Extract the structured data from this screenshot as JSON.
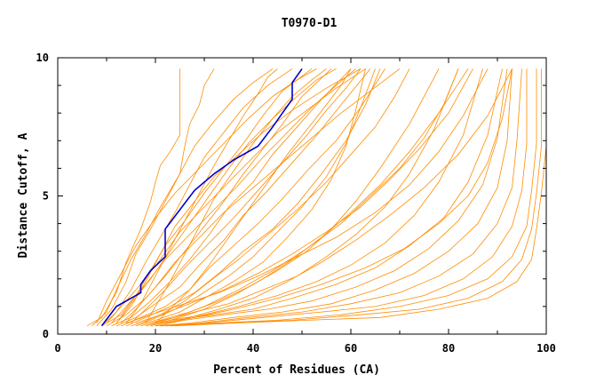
{
  "chart_data": {
    "type": "line",
    "title": "T0970-D1",
    "xlabel": "Percent of Residues (CA)",
    "ylabel": "Distance Cutoff, A",
    "xlim": [
      0,
      100
    ],
    "ylim": [
      0,
      10
    ],
    "x_ticks": [
      0,
      20,
      40,
      60,
      80,
      100
    ],
    "y_ticks": [
      0,
      5,
      10
    ],
    "grid": false,
    "colors": {
      "highlight": "#0000cc",
      "other": "#ff8c00"
    },
    "highlight_series": {
      "x": [
        9,
        12,
        17,
        17,
        19,
        22,
        22,
        25,
        28,
        32,
        36,
        41,
        44,
        46,
        48,
        48,
        50
      ],
      "y": [
        0.3,
        1.0,
        1.5,
        1.8,
        2.3,
        2.8,
        3.8,
        4.5,
        5.2,
        5.8,
        6.3,
        6.8,
        7.5,
        8.0,
        8.5,
        9.1,
        9.6
      ]
    },
    "series": [
      {
        "x": [
          6,
          9,
          12,
          14,
          17,
          19,
          20,
          21,
          23,
          25,
          25,
          25
        ],
        "y": [
          0.3,
          0.6,
          1.5,
          2.6,
          3.8,
          4.8,
          5.5,
          6.1,
          6.6,
          7.2,
          8.5,
          9.6
        ]
      },
      {
        "x": [
          7,
          10,
          12,
          15,
          18,
          21,
          25,
          26,
          27,
          29,
          30,
          32
        ],
        "y": [
          0.3,
          0.8,
          1.6,
          2.7,
          3.6,
          4.6,
          5.8,
          6.8,
          7.6,
          8.3,
          9.0,
          9.6
        ]
      },
      {
        "x": [
          8,
          11,
          14,
          16,
          19,
          22,
          25,
          28,
          32,
          36,
          40,
          44
        ],
        "y": [
          0.3,
          0.9,
          1.9,
          2.9,
          3.8,
          4.8,
          5.8,
          6.8,
          7.7,
          8.5,
          9.1,
          9.6
        ]
      },
      {
        "x": [
          9,
          12,
          15,
          18,
          21,
          24,
          27,
          30,
          34,
          38,
          43,
          48
        ],
        "y": [
          0.3,
          0.8,
          1.6,
          2.6,
          3.5,
          4.4,
          5.4,
          6.4,
          7.3,
          8.2,
          9.0,
          9.6
        ]
      },
      {
        "x": [
          9,
          13,
          16,
          19,
          22,
          26,
          30,
          34,
          38,
          42,
          46,
          52
        ],
        "y": [
          0.3,
          0.7,
          1.4,
          2.3,
          3.2,
          4.1,
          5.1,
          6.0,
          6.9,
          7.9,
          8.8,
          9.6
        ]
      },
      {
        "x": [
          10,
          14,
          18,
          22,
          26,
          30,
          34,
          38,
          42,
          46,
          50,
          56
        ],
        "y": [
          0.3,
          0.7,
          1.3,
          2.1,
          3.0,
          3.9,
          4.8,
          5.8,
          6.7,
          7.6,
          8.6,
          9.6
        ]
      },
      {
        "x": [
          11,
          15,
          19,
          23,
          27,
          31,
          35,
          40,
          44,
          49,
          54,
          60
        ],
        "y": [
          0.3,
          0.6,
          1.2,
          1.9,
          2.7,
          3.6,
          4.6,
          5.5,
          6.5,
          7.5,
          8.5,
          9.6
        ]
      },
      {
        "x": [
          12,
          16,
          20,
          25,
          29,
          34,
          38,
          43,
          48,
          53,
          58,
          64
        ],
        "y": [
          0.3,
          0.6,
          1.1,
          1.7,
          2.5,
          3.4,
          4.3,
          5.2,
          6.2,
          7.2,
          8.3,
          9.6
        ]
      },
      {
        "x": [
          13,
          17,
          22,
          27,
          31,
          36,
          41,
          46,
          51,
          57,
          62,
          67
        ],
        "y": [
          0.3,
          0.6,
          1.0,
          1.6,
          2.4,
          3.2,
          4.0,
          4.9,
          5.9,
          7.0,
          8.2,
          9.6
        ]
      },
      {
        "x": [
          14,
          18,
          23,
          28,
          33,
          38,
          44,
          49,
          54,
          59,
          63,
          66
        ],
        "y": [
          0.3,
          0.6,
          1.0,
          1.5,
          2.2,
          3.0,
          3.8,
          4.7,
          5.8,
          7.0,
          8.3,
          9.6
        ]
      },
      {
        "x": [
          15,
          19,
          24,
          29,
          35,
          40,
          45,
          50,
          55,
          59,
          62,
          65
        ],
        "y": [
          0.3,
          0.5,
          0.9,
          1.4,
          2.1,
          2.8,
          3.7,
          4.6,
          5.7,
          6.9,
          8.2,
          9.6
        ]
      },
      {
        "x": [
          16,
          20,
          25,
          30,
          36,
          42,
          47,
          52,
          56,
          59,
          61,
          63
        ],
        "y": [
          0.3,
          0.5,
          0.8,
          1.3,
          1.9,
          2.6,
          3.5,
          4.5,
          5.6,
          6.8,
          8.1,
          9.6
        ]
      },
      {
        "x": [
          17,
          21,
          27,
          33,
          39,
          45,
          51,
          56,
          61,
          66,
          72,
          78
        ],
        "y": [
          0.3,
          0.5,
          0.8,
          1.2,
          1.7,
          2.3,
          3.0,
          3.8,
          4.8,
          6.0,
          7.6,
          9.6
        ]
      },
      {
        "x": [
          18,
          22,
          28,
          35,
          42,
          49,
          55,
          61,
          67,
          72,
          77,
          82
        ],
        "y": [
          0.3,
          0.5,
          0.8,
          1.1,
          1.6,
          2.1,
          2.8,
          3.6,
          4.6,
          5.8,
          7.4,
          9.6
        ]
      },
      {
        "x": [
          18,
          23,
          30,
          37,
          45,
          53,
          60,
          67,
          73,
          78,
          83,
          87
        ],
        "y": [
          0.3,
          0.5,
          0.7,
          1.0,
          1.4,
          1.9,
          2.5,
          3.3,
          4.3,
          5.5,
          7.2,
          9.6
        ]
      },
      {
        "x": [
          19,
          24,
          32,
          40,
          48,
          57,
          65,
          72,
          79,
          84,
          88,
          91
        ],
        "y": [
          0.3,
          0.5,
          0.7,
          0.9,
          1.3,
          1.8,
          2.4,
          3.2,
          4.2,
          5.5,
          7.2,
          9.6
        ]
      },
      {
        "x": [
          20,
          26,
          34,
          43,
          52,
          61,
          69,
          76,
          82,
          87,
          90,
          92
        ],
        "y": [
          0.3,
          0.5,
          0.7,
          0.9,
          1.2,
          1.7,
          2.3,
          3.1,
          4.1,
          5.4,
          7.1,
          9.6
        ]
      },
      {
        "x": [
          20,
          27,
          36,
          46,
          56,
          65,
          73,
          80,
          86,
          90,
          92,
          93
        ],
        "y": [
          0.3,
          0.4,
          0.6,
          0.8,
          1.1,
          1.6,
          2.2,
          3.0,
          4.0,
          5.3,
          7.0,
          9.6
        ]
      },
      {
        "x": [
          21,
          29,
          39,
          50,
          60,
          70,
          78,
          85,
          90,
          93,
          94,
          95
        ],
        "y": [
          0.3,
          0.4,
          0.6,
          0.8,
          1.1,
          1.5,
          2.1,
          2.9,
          4.0,
          5.3,
          7.0,
          9.6
        ]
      },
      {
        "x": [
          21,
          30,
          42,
          54,
          65,
          75,
          83,
          89,
          93,
          95,
          96,
          96
        ],
        "y": [
          0.3,
          0.4,
          0.6,
          0.8,
          1.0,
          1.4,
          2.0,
          2.8,
          3.9,
          5.2,
          6.9,
          9.6
        ]
      },
      {
        "x": [
          22,
          32,
          45,
          58,
          70,
          80,
          88,
          93,
          96,
          97,
          98,
          98
        ],
        "y": [
          0.3,
          0.4,
          0.5,
          0.7,
          1.0,
          1.4,
          2.0,
          2.8,
          3.9,
          5.2,
          6.9,
          9.6
        ]
      },
      {
        "x": [
          23,
          34,
          48,
          62,
          74,
          84,
          91,
          95,
          97,
          98,
          99,
          99
        ],
        "y": [
          0.3,
          0.4,
          0.5,
          0.7,
          0.9,
          1.3,
          1.9,
          2.7,
          3.8,
          5.1,
          6.8,
          9.6
        ]
      },
      {
        "x": [
          24,
          36,
          51,
          66,
          78,
          88,
          94,
          97,
          98,
          99,
          100,
          100
        ],
        "y": [
          0.3,
          0.4,
          0.5,
          0.6,
          0.9,
          1.3,
          1.9,
          2.7,
          3.8,
          5.1,
          6.8,
          9.6
        ]
      },
      {
        "x": [
          13,
          16,
          20,
          24,
          29,
          34,
          40,
          46,
          52,
          58,
          64,
          70
        ],
        "y": [
          0.4,
          0.9,
          1.7,
          2.6,
          3.5,
          4.4,
          5.3,
          6.2,
          7.1,
          8.0,
          8.8,
          9.6
        ]
      },
      {
        "x": [
          12,
          15,
          18,
          21,
          24,
          28,
          32,
          37,
          42,
          48,
          55,
          62
        ],
        "y": [
          0.4,
          1.0,
          1.9,
          2.9,
          3.9,
          4.8,
          5.7,
          6.5,
          7.3,
          8.1,
          8.9,
          9.6
        ]
      },
      {
        "x": [
          16,
          21,
          27,
          34,
          41,
          48,
          55,
          62,
          68,
          74,
          80,
          85
        ],
        "y": [
          0.4,
          0.7,
          1.1,
          1.6,
          2.2,
          2.9,
          3.7,
          4.6,
          5.6,
          6.7,
          8.0,
          9.6
        ]
      },
      {
        "x": [
          14,
          19,
          26,
          33,
          41,
          49,
          57,
          65,
          72,
          78,
          83,
          88
        ],
        "y": [
          0.4,
          0.7,
          1.1,
          1.5,
          2.1,
          2.8,
          3.5,
          4.4,
          5.4,
          6.6,
          7.9,
          9.6
        ]
      },
      {
        "x": [
          22,
          28,
          36,
          45,
          54,
          63,
          71,
          78,
          84,
          88,
          91,
          93
        ],
        "y": [
          0.4,
          0.6,
          0.9,
          1.3,
          1.8,
          2.4,
          3.1,
          4.0,
          5.0,
          6.2,
          7.8,
          9.6
        ]
      },
      {
        "x": [
          10,
          13,
          17,
          21,
          25,
          30,
          35,
          40,
          45,
          51,
          57,
          63
        ],
        "y": [
          0.4,
          1.0,
          1.8,
          2.7,
          3.7,
          4.6,
          5.5,
          6.4,
          7.3,
          8.1,
          8.9,
          9.6
        ]
      },
      {
        "x": [
          11,
          14,
          18,
          22,
          27,
          32,
          37,
          42,
          47,
          52,
          57,
          61
        ],
        "y": [
          0.4,
          1.0,
          1.8,
          2.7,
          3.6,
          4.5,
          5.4,
          6.4,
          7.3,
          8.2,
          9.0,
          9.6
        ]
      },
      {
        "x": [
          12,
          15,
          19,
          23,
          27,
          31,
          35,
          39,
          44,
          49,
          53,
          57
        ],
        "y": [
          0.4,
          1.1,
          2.0,
          3.0,
          4.0,
          5.0,
          6.0,
          6.9,
          7.8,
          8.6,
          9.2,
          9.6
        ]
      },
      {
        "x": [
          15,
          18,
          22,
          26,
          31,
          36,
          41,
          46,
          51,
          55,
          59,
          62
        ],
        "y": [
          0.4,
          0.9,
          1.6,
          2.4,
          3.3,
          4.2,
          5.2,
          6.2,
          7.2,
          8.1,
          8.9,
          9.6
        ]
      },
      {
        "x": [
          17,
          21,
          26,
          31,
          37,
          43,
          49,
          55,
          60,
          65,
          69,
          72
        ],
        "y": [
          0.4,
          0.7,
          1.2,
          1.9,
          2.7,
          3.6,
          4.5,
          5.5,
          6.5,
          7.5,
          8.6,
          9.6
        ]
      },
      {
        "x": [
          19,
          24,
          30,
          37,
          44,
          51,
          58,
          64,
          70,
          75,
          79,
          82
        ],
        "y": [
          0.4,
          0.6,
          1.0,
          1.6,
          2.3,
          3.1,
          4.0,
          5.0,
          6.0,
          7.1,
          8.3,
          9.6
        ]
      },
      {
        "x": [
          20,
          23,
          27,
          31,
          35,
          39,
          43,
          47,
          51,
          55,
          58,
          60
        ],
        "y": [
          0.4,
          0.9,
          1.6,
          2.5,
          3.5,
          4.5,
          5.5,
          6.5,
          7.4,
          8.3,
          9.0,
          9.6
        ]
      },
      {
        "x": [
          18,
          20,
          23,
          26,
          29,
          32,
          36,
          40,
          44,
          48,
          52,
          55
        ],
        "y": [
          0.4,
          1.0,
          1.9,
          2.9,
          3.9,
          4.9,
          5.9,
          6.9,
          7.8,
          8.6,
          9.2,
          9.6
        ]
      },
      {
        "x": [
          21,
          25,
          30,
          36,
          42,
          48,
          54,
          60,
          66,
          72,
          78,
          84
        ],
        "y": [
          0.4,
          0.6,
          0.9,
          1.4,
          2.0,
          2.7,
          3.5,
          4.4,
          5.4,
          6.6,
          8.0,
          9.6
        ]
      },
      {
        "x": [
          23,
          27,
          33,
          40,
          47,
          54,
          61,
          68,
          75,
          82,
          88,
          93
        ],
        "y": [
          0.4,
          0.6,
          0.9,
          1.3,
          1.9,
          2.6,
          3.4,
          4.3,
          5.3,
          6.5,
          7.9,
          9.6
        ]
      },
      {
        "x": [
          8,
          10,
          13,
          16,
          20,
          24,
          29,
          34,
          39,
          44,
          49,
          53
        ],
        "y": [
          0.4,
          1.2,
          2.2,
          3.2,
          4.2,
          5.1,
          6.0,
          6.9,
          7.8,
          8.6,
          9.2,
          9.6
        ]
      },
      {
        "x": [
          14,
          17,
          20,
          23,
          26,
          29,
          32,
          35,
          38,
          41,
          43,
          45
        ],
        "y": [
          0.4,
          1.1,
          2.1,
          3.1,
          4.1,
          5.1,
          6.1,
          7.0,
          7.9,
          8.7,
          9.3,
          9.6
        ]
      }
    ]
  }
}
